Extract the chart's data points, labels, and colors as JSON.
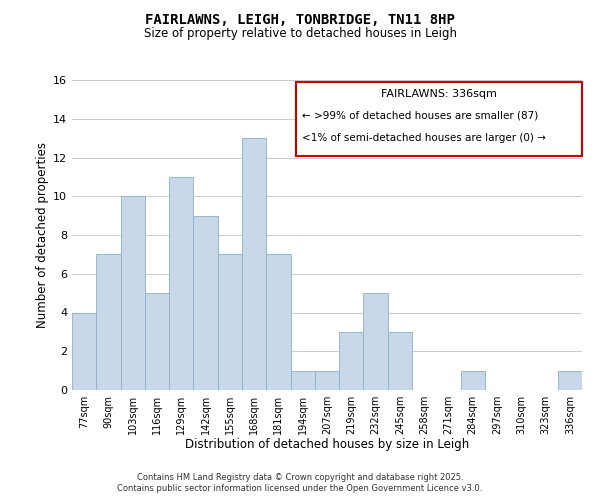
{
  "title": "FAIRLAWNS, LEIGH, TONBRIDGE, TN11 8HP",
  "subtitle": "Size of property relative to detached houses in Leigh",
  "xlabel": "Distribution of detached houses by size in Leigh",
  "ylabel": "Number of detached properties",
  "bar_color": "#c8d8e8",
  "bar_edgecolor": "#8ab0cc",
  "categories": [
    "77sqm",
    "90sqm",
    "103sqm",
    "116sqm",
    "129sqm",
    "142sqm",
    "155sqm",
    "168sqm",
    "181sqm",
    "194sqm",
    "207sqm",
    "219sqm",
    "232sqm",
    "245sqm",
    "258sqm",
    "271sqm",
    "284sqm",
    "297sqm",
    "310sqm",
    "323sqm",
    "336sqm"
  ],
  "values": [
    4,
    7,
    10,
    5,
    11,
    9,
    7,
    13,
    7,
    1,
    1,
    3,
    5,
    3,
    0,
    0,
    1,
    0,
    0,
    0,
    1
  ],
  "ylim": [
    0,
    16
  ],
  "yticks": [
    0,
    2,
    4,
    6,
    8,
    10,
    12,
    14,
    16
  ],
  "legend_title": "FAIRLAWNS: 336sqm",
  "legend_line1": "← >99% of detached houses are smaller (87)",
  "legend_line2": "<1% of semi-detached houses are larger (0) →",
  "legend_box_color": "#ffffff",
  "legend_box_edgecolor": "#cc0000",
  "footer_line1": "Contains HM Land Registry data © Crown copyright and database right 2025.",
  "footer_line2": "Contains public sector information licensed under the Open Government Licence v3.0.",
  "grid_color": "#cccccc",
  "background_color": "#ffffff"
}
